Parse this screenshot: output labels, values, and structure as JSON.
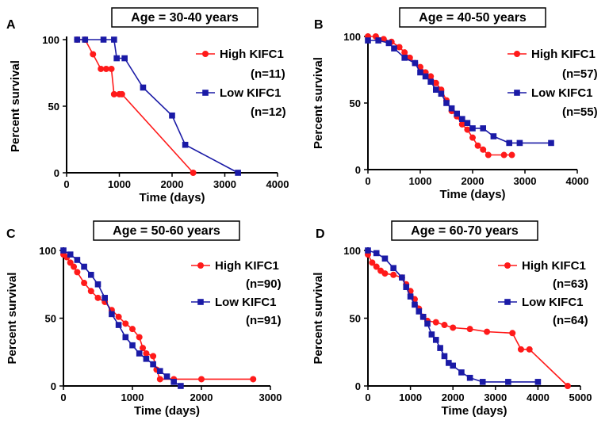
{
  "chart_data": [
    {
      "panel": "A",
      "type": "line",
      "title": "Age = 30-40 years",
      "xlabel": "Time (days)",
      "ylabel": "Percent survival",
      "xlim": [
        0,
        4000
      ],
      "ylim": [
        0,
        100
      ],
      "xticks": [
        0,
        1000,
        2000,
        3000,
        4000
      ],
      "yticks": [
        0,
        50,
        100
      ],
      "legend_position": "right",
      "series": [
        {
          "name": "High KIFC1",
          "n_label": "(n=11)",
          "color": "#ff1a1a",
          "marker": "circle",
          "points": [
            [
              200,
              100
            ],
            [
              350,
              100
            ],
            [
              500,
              89
            ],
            [
              650,
              78
            ],
            [
              750,
              78
            ],
            [
              850,
              78
            ],
            [
              900,
              59
            ],
            [
              1000,
              59
            ],
            [
              1050,
              59
            ],
            [
              2400,
              0
            ]
          ]
        },
        {
          "name": "Low KIFC1",
          "n_label": "(n=12)",
          "color": "#1a1aa6",
          "marker": "square",
          "points": [
            [
              200,
              100
            ],
            [
              350,
              100
            ],
            [
              700,
              100
            ],
            [
              900,
              100
            ],
            [
              950,
              86
            ],
            [
              1100,
              86
            ],
            [
              1450,
              64
            ],
            [
              2000,
              43
            ],
            [
              2250,
              21
            ],
            [
              3250,
              0
            ]
          ]
        }
      ]
    },
    {
      "panel": "B",
      "type": "line",
      "title": "Age = 40-50 years",
      "xlabel": "Time (days)",
      "ylabel": "Percent survival",
      "xlim": [
        0,
        4000
      ],
      "ylim": [
        0,
        100
      ],
      "xticks": [
        0,
        1000,
        2000,
        3000,
        4000
      ],
      "yticks": [
        0,
        50,
        100
      ],
      "legend_position": "right",
      "series": [
        {
          "name": "High KIFC1",
          "n_label": "(n=57)",
          "color": "#ff1a1a",
          "marker": "circle",
          "points": [
            [
              0,
              100
            ],
            [
              150,
              100
            ],
            [
              300,
              98
            ],
            [
              450,
              96
            ],
            [
              600,
              92
            ],
            [
              700,
              88
            ],
            [
              800,
              84
            ],
            [
              900,
              80
            ],
            [
              1000,
              77
            ],
            [
              1100,
              73
            ],
            [
              1200,
              70
            ],
            [
              1300,
              65
            ],
            [
              1400,
              60
            ],
            [
              1500,
              52
            ],
            [
              1600,
              44
            ],
            [
              1700,
              40
            ],
            [
              1800,
              34
            ],
            [
              1900,
              30
            ],
            [
              2000,
              24
            ],
            [
              2100,
              18
            ],
            [
              2200,
              15
            ],
            [
              2300,
              11
            ],
            [
              2600,
              11
            ],
            [
              2750,
              11
            ]
          ]
        },
        {
          "name": "Low KIFC1",
          "n_label": "(n=55)",
          "color": "#1a1aa6",
          "marker": "square",
          "points": [
            [
              0,
              97
            ],
            [
              200,
              97
            ],
            [
              400,
              95
            ],
            [
              500,
              91
            ],
            [
              700,
              84
            ],
            [
              900,
              80
            ],
            [
              1000,
              73
            ],
            [
              1100,
              70
            ],
            [
              1200,
              66
            ],
            [
              1300,
              60
            ],
            [
              1400,
              57
            ],
            [
              1500,
              50
            ],
            [
              1600,
              46
            ],
            [
              1700,
              42
            ],
            [
              1800,
              38
            ],
            [
              1900,
              35
            ],
            [
              2000,
              31
            ],
            [
              2200,
              31
            ],
            [
              2400,
              25
            ],
            [
              2700,
              20
            ],
            [
              2900,
              20
            ],
            [
              3500,
              20
            ]
          ]
        }
      ]
    },
    {
      "panel": "C",
      "type": "line",
      "title": "Age = 50-60 years",
      "xlabel": "Time (days)",
      "ylabel": "Percent survival",
      "xlim": [
        0,
        3000
      ],
      "ylim": [
        0,
        100
      ],
      "xticks": [
        0,
        1000,
        2000,
        3000
      ],
      "yticks": [
        0,
        50,
        100
      ],
      "legend_position": "right",
      "series": [
        {
          "name": "High KIFC1",
          "n_label": "(n=90)",
          "color": "#ff1a1a",
          "marker": "circle",
          "points": [
            [
              0,
              97
            ],
            [
              50,
              95
            ],
            [
              100,
              91
            ],
            [
              150,
              88
            ],
            [
              200,
              84
            ],
            [
              300,
              76
            ],
            [
              400,
              70
            ],
            [
              500,
              65
            ],
            [
              600,
              62
            ],
            [
              700,
              56
            ],
            [
              800,
              51
            ],
            [
              900,
              46
            ],
            [
              1000,
              42
            ],
            [
              1100,
              36
            ],
            [
              1150,
              28
            ],
            [
              1200,
              24
            ],
            [
              1300,
              22
            ],
            [
              1350,
              12
            ],
            [
              1400,
              5
            ],
            [
              1600,
              5
            ],
            [
              2000,
              5
            ],
            [
              2750,
              5
            ]
          ]
        },
        {
          "name": "Low KIFC1",
          "n_label": "(n=91)",
          "color": "#1a1aa6",
          "marker": "square",
          "points": [
            [
              0,
              100
            ],
            [
              100,
              97
            ],
            [
              200,
              93
            ],
            [
              300,
              88
            ],
            [
              400,
              82
            ],
            [
              500,
              75
            ],
            [
              600,
              65
            ],
            [
              700,
              53
            ],
            [
              800,
              45
            ],
            [
              900,
              36
            ],
            [
              1000,
              30
            ],
            [
              1100,
              24
            ],
            [
              1200,
              20
            ],
            [
              1300,
              16
            ],
            [
              1400,
              11
            ],
            [
              1500,
              7
            ],
            [
              1600,
              3
            ],
            [
              1700,
              0
            ]
          ]
        }
      ]
    },
    {
      "panel": "D",
      "type": "line",
      "title": "Age = 60-70 years",
      "xlabel": "Time (days)",
      "ylabel": "Percent survival",
      "xlim": [
        0,
        5000
      ],
      "ylim": [
        0,
        100
      ],
      "xticks": [
        0,
        1000,
        2000,
        3000,
        4000,
        5000
      ],
      "yticks": [
        0,
        50,
        100
      ],
      "legend_position": "right",
      "series": [
        {
          "name": "High KIFC1",
          "n_label": "(n=63)",
          "color": "#ff1a1a",
          "marker": "circle",
          "points": [
            [
              0,
              97
            ],
            [
              100,
              91
            ],
            [
              200,
              88
            ],
            [
              300,
              85
            ],
            [
              400,
              83
            ],
            [
              600,
              82
            ],
            [
              800,
              80
            ],
            [
              900,
              75
            ],
            [
              1000,
              70
            ],
            [
              1100,
              64
            ],
            [
              1200,
              57
            ],
            [
              1300,
              51
            ],
            [
              1400,
              48
            ],
            [
              1600,
              47
            ],
            [
              1800,
              45
            ],
            [
              2000,
              43
            ],
            [
              2400,
              42
            ],
            [
              2800,
              40
            ],
            [
              3400,
              39
            ],
            [
              3600,
              27
            ],
            [
              3800,
              27
            ],
            [
              4700,
              0
            ]
          ]
        },
        {
          "name": "Low KIFC1",
          "n_label": "(n=64)",
          "color": "#1a1aa6",
          "marker": "square",
          "points": [
            [
              0,
              100
            ],
            [
              200,
              98
            ],
            [
              400,
              94
            ],
            [
              600,
              87
            ],
            [
              800,
              80
            ],
            [
              900,
              73
            ],
            [
              1000,
              66
            ],
            [
              1100,
              60
            ],
            [
              1200,
              55
            ],
            [
              1300,
              51
            ],
            [
              1400,
              46
            ],
            [
              1500,
              38
            ],
            [
              1600,
              34
            ],
            [
              1700,
              28
            ],
            [
              1800,
              22
            ],
            [
              1900,
              17
            ],
            [
              2000,
              15
            ],
            [
              2200,
              10
            ],
            [
              2400,
              6
            ],
            [
              2700,
              3
            ],
            [
              3300,
              3
            ],
            [
              4000,
              3
            ]
          ]
        }
      ]
    }
  ]
}
